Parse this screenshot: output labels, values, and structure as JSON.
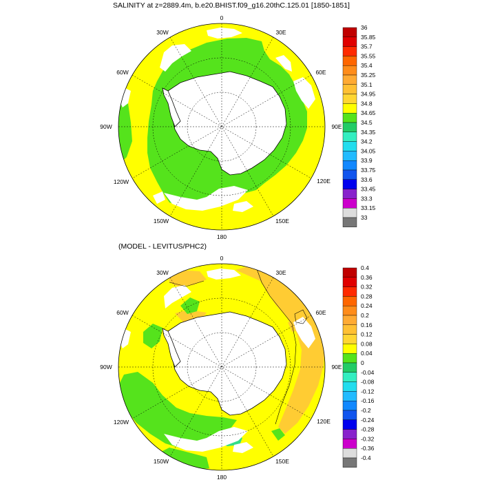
{
  "colors": {
    "yellow": "#ffff00",
    "green": "#55e31c",
    "light_orange": "#ffcc33",
    "sea_green": "#33dd88",
    "land": "#ffffff",
    "contour": "#000000",
    "grid": "#000000"
  },
  "panels": [
    {
      "title": "SALINITY at z=2889.4m, b.e20.BHIST.f09_g16.20thC.125.01 [1850-1851]",
      "lon_labels": [
        "0",
        "30E",
        "60E",
        "90E",
        "120E",
        "150E",
        "180",
        "150W",
        "120W",
        "90W",
        "60W",
        "30W"
      ],
      "colorbar": {
        "labels": [
          "36",
          "35.85",
          "35.7",
          "35.55",
          "35.4",
          "35.25",
          "35.1",
          "34.95",
          "34.8",
          "34.65",
          "34.5",
          "34.35",
          "34.2",
          "34.05",
          "33.9",
          "33.75",
          "33.6",
          "33.45",
          "33.3",
          "33.15",
          "33"
        ],
        "colors": [
          "#c00000",
          "#e00000",
          "#ff2a00",
          "#ff6600",
          "#ff8c1a",
          "#ffaa33",
          "#ffc033",
          "#ffd633",
          "#ffff00",
          "#55e31c",
          "#22cc66",
          "#33eec0",
          "#22ddee",
          "#22bbff",
          "#1188ff",
          "#1155ee",
          "#0000ee",
          "#8822cc",
          "#cc00cc",
          "#dddddd",
          "#777777"
        ]
      }
    },
    {
      "title": "(MODEL - LEVITUS/PHC2)",
      "lon_labels": [
        "0",
        "30E",
        "60E",
        "90E",
        "120E",
        "150E",
        "180",
        "150W",
        "120W",
        "90W",
        "60W",
        "30W"
      ],
      "colorbar": {
        "labels": [
          "0.4",
          "0.36",
          "0.32",
          "0.28",
          "0.24",
          "0.2",
          "0.16",
          "0.12",
          "0.08",
          "0.04",
          "0",
          "-0.04",
          "-0.08",
          "-0.12",
          "-0.16",
          "-0.2",
          "-0.24",
          "-0.28",
          "-0.32",
          "-0.36",
          "-0.4"
        ],
        "colors": [
          "#c00000",
          "#e00000",
          "#ff2a00",
          "#ff6600",
          "#ff8c1a",
          "#ffaa33",
          "#ffc033",
          "#ffd633",
          "#ffff00",
          "#55e31c",
          "#22cc66",
          "#33eec0",
          "#22ddee",
          "#22bbff",
          "#1188ff",
          "#1155ee",
          "#0000ee",
          "#8822cc",
          "#cc00cc",
          "#dddddd",
          "#777777"
        ]
      }
    }
  ]
}
